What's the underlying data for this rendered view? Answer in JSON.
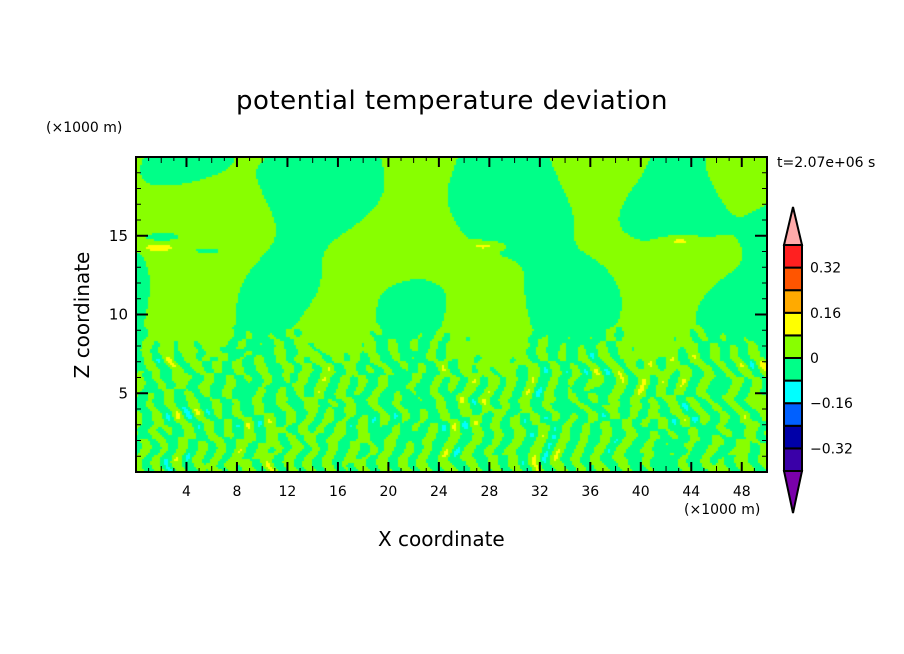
{
  "chart_data": {
    "type": "heatmap",
    "subtype": "filled-contour",
    "title": "potential temperature deviation",
    "xlabel": "X coordinate",
    "ylabel": "Z coordinate",
    "x_unit": "(×1000 m)",
    "y_unit": "(×1000 m)",
    "time_label": "t=2.07e+06 s",
    "xlim": [
      0,
      50
    ],
    "ylim": [
      0,
      20
    ],
    "x_ticks": [
      4,
      8,
      12,
      16,
      20,
      24,
      28,
      32,
      36,
      40,
      44,
      48
    ],
    "y_ticks": [
      5,
      10,
      15
    ],
    "colorbar": {
      "levels": [
        -0.4,
        -0.32,
        -0.24,
        -0.16,
        -0.08,
        0,
        0.08,
        0.16,
        0.24,
        0.32,
        0.4
      ],
      "tick_labels": [
        "0.32",
        "0.16",
        "0",
        "−0.16",
        "−0.32"
      ],
      "tick_values": [
        0.32,
        0.16,
        0,
        -0.16,
        -0.32
      ],
      "colors": [
        "#3a00a8",
        "#0000a8",
        "#0060ff",
        "#00ffff",
        "#00ff88",
        "#88ff00",
        "#ffff00",
        "#ffaa00",
        "#ff5500",
        "#ff2020"
      ],
      "under_color": "#7a00aa",
      "over_color": "#ffaaaa"
    },
    "description_of_field": {
      "dominant_range": [
        -0.08,
        0.08
      ],
      "features": [
        {
          "x": 27.5,
          "z": 14.4,
          "value": 0.1
        },
        {
          "x": 43,
          "z": 14.7,
          "value": 0.1
        },
        {
          "x": 5.5,
          "z": 14.1,
          "value": -0.1
        },
        {
          "x": 2.3,
          "z": 15.0,
          "value": -0.1
        },
        {
          "x": 1.5,
          "z": 14.3,
          "value": 0.1
        }
      ]
    }
  }
}
